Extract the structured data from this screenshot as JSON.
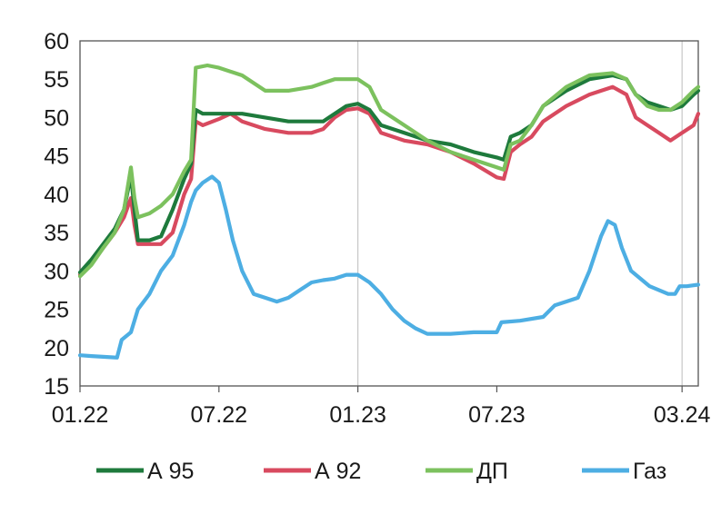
{
  "chart_data": {
    "type": "line",
    "title": "",
    "xlabel": "",
    "ylabel": "",
    "ylim": [
      15,
      60
    ],
    "y_ticks": [
      "15",
      "20",
      "25",
      "30",
      "35",
      "40",
      "45",
      "50",
      "55",
      "60"
    ],
    "x_ticks": [
      "01.22",
      "07.22",
      "01.23",
      "07.23",
      "03.24"
    ],
    "x_tick_positions": [
      0,
      6,
      12,
      18,
      26
    ],
    "xlim": [
      0,
      26.7
    ],
    "grid": "vertical lines at 01.23 and 03.24",
    "legend_position": "bottom",
    "series": [
      {
        "name": "А 95",
        "color": "#1e7a3c",
        "points": [
          [
            0,
            29.8
          ],
          [
            0.5,
            31.5
          ],
          [
            1,
            33.5
          ],
          [
            1.5,
            35.5
          ],
          [
            1.9,
            38
          ],
          [
            2.2,
            42.5
          ],
          [
            2.35,
            38
          ],
          [
            2.5,
            34
          ],
          [
            3,
            34
          ],
          [
            3.5,
            34.5
          ],
          [
            4,
            38
          ],
          [
            4.5,
            42
          ],
          [
            4.8,
            44
          ],
          [
            5,
            51
          ],
          [
            5.3,
            50.5
          ],
          [
            6,
            50.5
          ],
          [
            7,
            50.5
          ],
          [
            8,
            50
          ],
          [
            9,
            49.5
          ],
          [
            10,
            49.5
          ],
          [
            10.5,
            49.5
          ],
          [
            11,
            50.5
          ],
          [
            11.5,
            51.5
          ],
          [
            12,
            51.8
          ],
          [
            12.5,
            51
          ],
          [
            13,
            49
          ],
          [
            14,
            48
          ],
          [
            15,
            47
          ],
          [
            16,
            46.5
          ],
          [
            17,
            45.5
          ],
          [
            18,
            44.8
          ],
          [
            18.3,
            44.5
          ],
          [
            18.6,
            47.5
          ],
          [
            19,
            48
          ],
          [
            19.5,
            49
          ],
          [
            20,
            51.5
          ],
          [
            21,
            53.5
          ],
          [
            22,
            55
          ],
          [
            23,
            55.5
          ],
          [
            23.6,
            55
          ],
          [
            24,
            53
          ],
          [
            24.5,
            52
          ],
          [
            25,
            51.5
          ],
          [
            25.5,
            51
          ],
          [
            26,
            51.5
          ],
          [
            26.5,
            53
          ],
          [
            26.7,
            53.5
          ]
        ]
      },
      {
        "name": "А 92",
        "color": "#d84a5f",
        "points": [
          [
            0,
            29.5
          ],
          [
            0.5,
            31
          ],
          [
            1,
            33
          ],
          [
            1.5,
            35
          ],
          [
            1.9,
            37
          ],
          [
            2.2,
            39.5
          ],
          [
            2.35,
            36
          ],
          [
            2.5,
            33.5
          ],
          [
            3,
            33.5
          ],
          [
            3.5,
            33.5
          ],
          [
            4,
            35
          ],
          [
            4.5,
            40
          ],
          [
            4.8,
            42
          ],
          [
            5,
            49.5
          ],
          [
            5.3,
            49
          ],
          [
            6,
            49.8
          ],
          [
            6.5,
            50.5
          ],
          [
            7,
            49.5
          ],
          [
            8,
            48.5
          ],
          [
            9,
            48
          ],
          [
            10,
            48
          ],
          [
            10.5,
            48.5
          ],
          [
            11,
            50
          ],
          [
            11.5,
            51
          ],
          [
            12,
            51.2
          ],
          [
            12.5,
            50.5
          ],
          [
            13,
            48
          ],
          [
            14,
            47
          ],
          [
            15,
            46.5
          ],
          [
            16,
            45.5
          ],
          [
            17,
            44
          ],
          [
            18,
            42.2
          ],
          [
            18.3,
            42
          ],
          [
            18.6,
            45.5
          ],
          [
            19,
            46.5
          ],
          [
            19.5,
            47.5
          ],
          [
            20,
            49.5
          ],
          [
            21,
            51.5
          ],
          [
            22,
            53
          ],
          [
            23,
            54
          ],
          [
            23.6,
            53
          ],
          [
            24,
            50
          ],
          [
            24.5,
            49
          ],
          [
            25,
            48
          ],
          [
            25.5,
            47
          ],
          [
            26,
            48
          ],
          [
            26.5,
            49
          ],
          [
            26.7,
            50.5
          ]
        ]
      },
      {
        "name": "ДП",
        "color": "#7cc15e",
        "points": [
          [
            0,
            29.3
          ],
          [
            0.5,
            30.8
          ],
          [
            1,
            33
          ],
          [
            1.5,
            35
          ],
          [
            1.9,
            38
          ],
          [
            2.2,
            43.5
          ],
          [
            2.35,
            39.5
          ],
          [
            2.5,
            37
          ],
          [
            3,
            37.5
          ],
          [
            3.5,
            38.5
          ],
          [
            4,
            40
          ],
          [
            4.5,
            43
          ],
          [
            4.8,
            44.5
          ],
          [
            5,
            56.5
          ],
          [
            5.5,
            56.8
          ],
          [
            6,
            56.5
          ],
          [
            7,
            55.5
          ],
          [
            8,
            53.5
          ],
          [
            9,
            53.5
          ],
          [
            10,
            54
          ],
          [
            10.5,
            54.5
          ],
          [
            11,
            55
          ],
          [
            11.5,
            55
          ],
          [
            12,
            55
          ],
          [
            12.5,
            54
          ],
          [
            13,
            51
          ],
          [
            14,
            49
          ],
          [
            15,
            47
          ],
          [
            16,
            45.5
          ],
          [
            17,
            44.5
          ],
          [
            18,
            43.5
          ],
          [
            18.3,
            43.2
          ],
          [
            18.6,
            46.5
          ],
          [
            19,
            47
          ],
          [
            19.5,
            49
          ],
          [
            20,
            51.5
          ],
          [
            21,
            54
          ],
          [
            22,
            55.5
          ],
          [
            23,
            55.8
          ],
          [
            23.6,
            55
          ],
          [
            24,
            53
          ],
          [
            24.5,
            51.5
          ],
          [
            25,
            51
          ],
          [
            25.5,
            51
          ],
          [
            26,
            52
          ],
          [
            26.5,
            53.5
          ],
          [
            26.7,
            54
          ]
        ]
      },
      {
        "name": "Газ",
        "color": "#4daee3",
        "points": [
          [
            0,
            19
          ],
          [
            0.5,
            18.9
          ],
          [
            1,
            18.8
          ],
          [
            1.6,
            18.7
          ],
          [
            1.8,
            21
          ],
          [
            2.2,
            22
          ],
          [
            2.5,
            25
          ],
          [
            3,
            27
          ],
          [
            3.5,
            30
          ],
          [
            4,
            32
          ],
          [
            4.5,
            36
          ],
          [
            4.8,
            39
          ],
          [
            5,
            40.5
          ],
          [
            5.3,
            41.5
          ],
          [
            5.7,
            42.3
          ],
          [
            6,
            41.5
          ],
          [
            6.3,
            38
          ],
          [
            6.6,
            34
          ],
          [
            7,
            30
          ],
          [
            7.5,
            27
          ],
          [
            8,
            26.5
          ],
          [
            8.5,
            26
          ],
          [
            9,
            26.5
          ],
          [
            9.5,
            27.5
          ],
          [
            10,
            28.5
          ],
          [
            10.5,
            28.8
          ],
          [
            11,
            29
          ],
          [
            11.5,
            29.5
          ],
          [
            12,
            29.5
          ],
          [
            12.5,
            28.5
          ],
          [
            13,
            27
          ],
          [
            13.5,
            25
          ],
          [
            14,
            23.5
          ],
          [
            14.5,
            22.5
          ],
          [
            15,
            21.8
          ],
          [
            16,
            21.8
          ],
          [
            17,
            22
          ],
          [
            18,
            22
          ],
          [
            18.2,
            23.3
          ],
          [
            19,
            23.5
          ],
          [
            20,
            24
          ],
          [
            20.5,
            25.5
          ],
          [
            21,
            26
          ],
          [
            21.5,
            26.5
          ],
          [
            22,
            30
          ],
          [
            22.5,
            34.5
          ],
          [
            22.8,
            36.5
          ],
          [
            23.1,
            36
          ],
          [
            23.4,
            33
          ],
          [
            23.8,
            30
          ],
          [
            24.2,
            29
          ],
          [
            24.6,
            28
          ],
          [
            25,
            27.5
          ],
          [
            25.4,
            27
          ],
          [
            25.7,
            27
          ],
          [
            25.9,
            28
          ],
          [
            26.2,
            28
          ],
          [
            26.7,
            28.2
          ]
        ]
      }
    ]
  }
}
